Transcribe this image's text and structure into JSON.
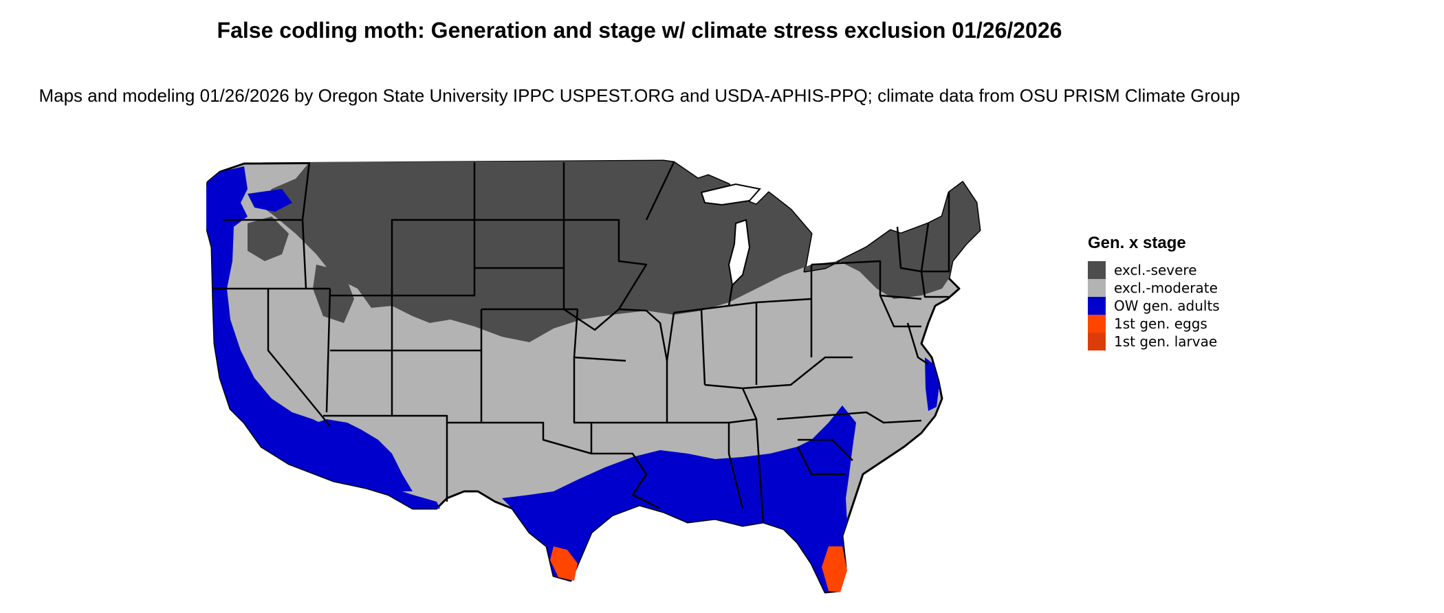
{
  "title": "False codling moth: Generation and stage w/ climate stress exclusion 01/26/2026",
  "subtitle": "Maps and modeling 01/26/2026 by Oregon State University IPPC USPEST.ORG and USDA-APHIS-PPQ; climate data from OSU PRISM Climate Group",
  "legend": {
    "title": "Gen. x stage",
    "items": [
      {
        "label": "excl.-severe",
        "color": "#4d4d4d"
      },
      {
        "label": "excl.-moderate",
        "color": "#b3b3b3"
      },
      {
        "label": "OW gen. adults",
        "color": "#0000cd"
      },
      {
        "label": "1st gen. eggs",
        "color": "#ff4500"
      },
      {
        "label": "1st gen. larvae",
        "color": "#dc3c0a"
      }
    ]
  },
  "colors": {
    "severe": "#4d4d4d",
    "moderate": "#b3b3b3",
    "adults": "#0000cd",
    "eggs": "#ff4500",
    "border": "#000000"
  }
}
